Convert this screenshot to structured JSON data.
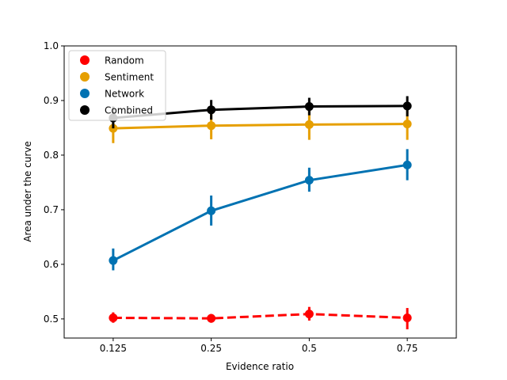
{
  "chart_data": {
    "type": "line",
    "title": "",
    "xlabel": "Evidence ratio",
    "ylabel": "Area under the curve",
    "categories": [
      "0.125",
      "0.25",
      "0.5",
      "0.75"
    ],
    "ylim": [
      0.465,
      1.0
    ],
    "yticks": [
      "0.5",
      "0.6",
      "0.7",
      "0.8",
      "0.9",
      "1.0"
    ],
    "grid": false,
    "legend_position": "top-left",
    "series": [
      {
        "name": "Random",
        "color": "#ff0000",
        "dashed": true,
        "values": [
          0.502,
          0.501,
          0.509,
          0.502
        ],
        "err_low": [
          0.493,
          0.493,
          0.497,
          0.481
        ],
        "err_high": [
          0.512,
          0.509,
          0.522,
          0.52
        ]
      },
      {
        "name": "Sentiment",
        "color": "#e69f00",
        "dashed": false,
        "values": [
          0.849,
          0.854,
          0.856,
          0.857
        ],
        "err_low": [
          0.822,
          0.829,
          0.828,
          0.828
        ],
        "err_high": [
          0.877,
          0.88,
          0.884,
          0.886
        ]
      },
      {
        "name": "Network",
        "color": "#0072b2",
        "dashed": false,
        "values": [
          0.607,
          0.698,
          0.754,
          0.782
        ],
        "err_low": [
          0.589,
          0.671,
          0.733,
          0.754
        ],
        "err_high": [
          0.629,
          0.726,
          0.777,
          0.811
        ]
      },
      {
        "name": "Combined",
        "color": "#000000",
        "dashed": false,
        "values": [
          0.868,
          0.883,
          0.889,
          0.89
        ],
        "err_low": [
          0.849,
          0.865,
          0.873,
          0.871
        ],
        "err_high": [
          0.889,
          0.901,
          0.905,
          0.908
        ]
      }
    ]
  }
}
